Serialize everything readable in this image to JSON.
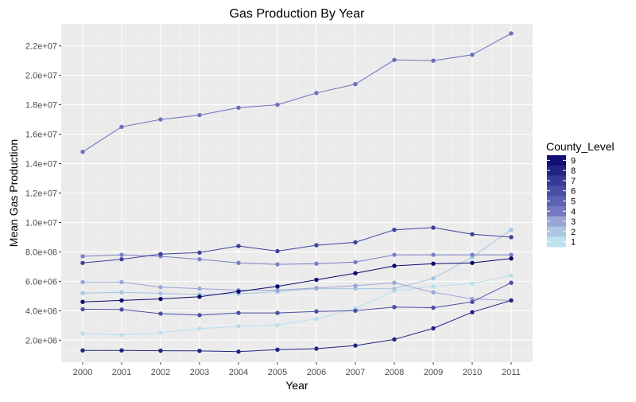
{
  "chart_data": {
    "type": "line",
    "title": "Gas Production By Year",
    "xlabel": "Year",
    "ylabel": "Mean Gas Production",
    "categories": [
      "2000",
      "2001",
      "2002",
      "2003",
      "2004",
      "2005",
      "2006",
      "2007",
      "2008",
      "2009",
      "2010",
      "2011"
    ],
    "ylim": [
      500000,
      23500000
    ],
    "yticks": [
      2000000,
      4000000,
      6000000,
      8000000,
      10000000,
      12000000,
      14000000,
      16000000,
      18000000,
      20000000,
      22000000
    ],
    "ytick_labels": [
      "2.0e+06",
      "4.0e+06",
      "6.0e+06",
      "8.0e+06",
      "1.0e+07",
      "1.2e+07",
      "1.4e+07",
      "1.6e+07",
      "1.8e+07",
      "2.0e+07",
      "2.2e+07"
    ],
    "grid": true,
    "legend": {
      "title": "County_Level",
      "placement": "right",
      "labels": [
        "9",
        "8",
        "7",
        "6",
        "5",
        "4",
        "3",
        "2",
        "1"
      ],
      "colors": [
        "#0f0f74",
        "#212483",
        "#363997",
        "#4a4ea5",
        "#5b62b3",
        "#7479c0",
        "#9aa5d6",
        "#adc6e1",
        "#bfe2ef"
      ]
    },
    "series": [
      {
        "name": "1",
        "color": "#b7dff0",
        "values": [
          2450000,
          2350000,
          2500000,
          2780000,
          2950000,
          3020000,
          3450000,
          4150000,
          5350000,
          5650000,
          5850000,
          6400000
        ]
      },
      {
        "name": "2",
        "color": "#a3c6e4",
        "values": [
          5200000,
          5250000,
          5180000,
          5100000,
          5150000,
          5300000,
          5500000,
          5500000,
          5500000,
          6200000,
          7650000,
          9500000
        ]
      },
      {
        "name": "3",
        "color": "#9aa5d6",
        "values": [
          5950000,
          5950000,
          5600000,
          5500000,
          5400000,
          5400000,
          5550000,
          5700000,
          5900000,
          5250000,
          4800000,
          4700000
        ]
      },
      {
        "name": "4",
        "color": "#7a80c4",
        "values": [
          7700000,
          7800000,
          7700000,
          7500000,
          7250000,
          7150000,
          7200000,
          7300000,
          7800000,
          7800000,
          7800000,
          7800000
        ]
      },
      {
        "name": "5",
        "color": "#6a70bc",
        "values": [
          14800000,
          16500000,
          17000000,
          17300000,
          17800000,
          18000000,
          18800000,
          19400000,
          21050000,
          21000000,
          21400000,
          22850000
        ]
      },
      {
        "name": "6",
        "color": "#4a4ea5",
        "values": [
          4100000,
          4080000,
          3800000,
          3700000,
          3850000,
          3850000,
          3950000,
          4000000,
          4250000,
          4200000,
          4600000,
          5900000
        ]
      },
      {
        "name": "7",
        "color": "#3d419c",
        "values": [
          7250000,
          7500000,
          7850000,
          7950000,
          8400000,
          8050000,
          8450000,
          8650000,
          9500000,
          9650000,
          9200000,
          9000000
        ]
      },
      {
        "name": "8",
        "color": "#212483",
        "values": [
          1300000,
          1300000,
          1280000,
          1270000,
          1220000,
          1350000,
          1420000,
          1630000,
          2050000,
          2800000,
          3900000,
          4700000
        ]
      },
      {
        "name": "9",
        "color": "#0a0a6e",
        "values": [
          4600000,
          4700000,
          4800000,
          4950000,
          5300000,
          5650000,
          6100000,
          6550000,
          7050000,
          7200000,
          7250000,
          7550000
        ]
      }
    ]
  }
}
